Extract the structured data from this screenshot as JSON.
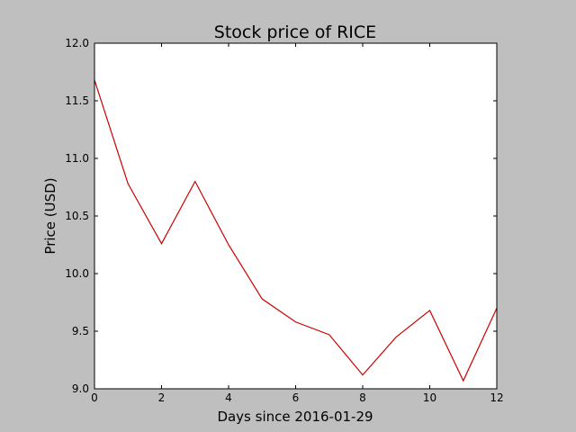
{
  "chart_data": {
    "type": "line",
    "title": "Stock price of RICE",
    "xlabel": "Days since 2016-01-29",
    "ylabel": "Price (USD)",
    "xlim": [
      0,
      12
    ],
    "ylim": [
      9.0,
      12.0
    ],
    "xticks": [
      0,
      2,
      4,
      6,
      8,
      10,
      12
    ],
    "xtick_labels": [
      "0",
      "2",
      "4",
      "6",
      "8",
      "10",
      "12"
    ],
    "yticks": [
      9.0,
      9.5,
      10.0,
      10.5,
      11.0,
      11.5,
      12.0
    ],
    "ytick_labels": [
      "9.0",
      "9.5",
      "10.0",
      "10.5",
      "11.0",
      "11.5",
      "12.0"
    ],
    "grid": false,
    "legend": "none",
    "series": [
      {
        "color": "#cc0000",
        "x": [
          0,
          1,
          2,
          3,
          4,
          5,
          6,
          7,
          8,
          9,
          10,
          11,
          12
        ],
        "y": [
          11.68,
          10.78,
          10.26,
          10.8,
          10.25,
          9.78,
          9.58,
          9.47,
          9.12,
          9.45,
          9.68,
          9.07,
          9.7
        ]
      }
    ]
  }
}
